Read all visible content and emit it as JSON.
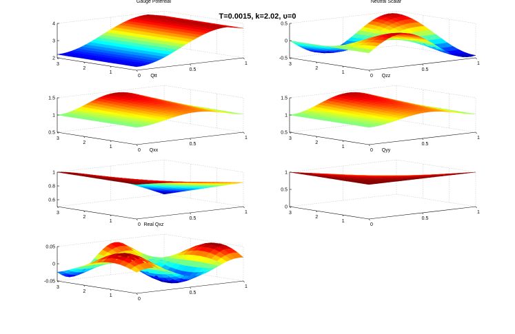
{
  "title": "T=0.0015, k=2.02, υ=0",
  "chart_data": [
    {
      "type": "surface",
      "title": "Gauge Potential",
      "xlim": [
        0,
        1
      ],
      "ylim": [
        0,
        3
      ],
      "zlim": [
        2,
        4
      ],
      "xticks": [
        "0",
        "0.5",
        "1"
      ],
      "yticks": [
        "1",
        "2",
        "3"
      ],
      "zticks": [
        "2",
        "3",
        "4"
      ],
      "surface": {
        "kind": "ramp",
        "z_at_x0": 2.2,
        "z_at_x1": 3.9,
        "peak_x": 0.85
      }
    },
    {
      "type": "surface",
      "title": "Neutral Scalar",
      "xlim": [
        0,
        1
      ],
      "ylim": [
        0,
        3
      ],
      "zlim": [
        -0.5,
        0.5
      ],
      "xticks": [
        "0",
        "0.5",
        "1"
      ],
      "yticks": [
        "1",
        "2",
        "3"
      ],
      "zticks": [
        "-0.5",
        "0",
        "0.5"
      ],
      "surface": {
        "kind": "wave",
        "amplitude": 0.45
      }
    },
    {
      "type": "surface",
      "title": "Qtt",
      "xlim": [
        0,
        1
      ],
      "ylim": [
        0,
        3
      ],
      "zlim": [
        0.5,
        1.5
      ],
      "xticks": [
        "0",
        "0.5",
        "1"
      ],
      "yticks": [
        "1",
        "2",
        "3"
      ],
      "zticks": [
        "0.5",
        "1",
        "1.5"
      ],
      "surface": {
        "kind": "bump",
        "base": 1.0,
        "peak": 1.45
      }
    },
    {
      "type": "surface",
      "title": "Qzz",
      "xlim": [
        0,
        1
      ],
      "ylim": [
        0,
        3
      ],
      "zlim": [
        0.5,
        1.5
      ],
      "xticks": [
        "0",
        "0.5",
        "1"
      ],
      "yticks": [
        "1",
        "2",
        "3"
      ],
      "zticks": [
        "0.5",
        "1",
        "1.5"
      ],
      "surface": {
        "kind": "bump",
        "base": 1.0,
        "peak": 1.45
      }
    },
    {
      "type": "surface",
      "title": "Qxx",
      "xlim": [
        0,
        1
      ],
      "ylim": [
        0,
        3
      ],
      "zlim": [
        0.5,
        1
      ],
      "xticks": [
        "0",
        "0.5",
        "1"
      ],
      "yticks": [
        "1",
        "2",
        "3"
      ],
      "zticks": [
        "0.6",
        "0.8",
        "1"
      ],
      "surface": {
        "kind": "dip",
        "base": 1.0,
        "min": 0.5
      }
    },
    {
      "type": "surface",
      "title": "Qyy",
      "xlim": [
        0,
        1
      ],
      "ylim": [
        0,
        3
      ],
      "zlim": [
        0,
        1
      ],
      "xticks": [
        "0",
        "0.5",
        "1"
      ],
      "yticks": [
        "1",
        "2",
        "3"
      ],
      "zticks": [
        "0",
        "0.5",
        "1"
      ],
      "surface": {
        "kind": "slope",
        "z_at_x0": 1.0,
        "z_at_x1": 0.5
      }
    },
    {
      "type": "surface",
      "title": "Real Qxz",
      "xlim": [
        0,
        1
      ],
      "ylim": [
        0,
        3
      ],
      "zlim": [
        -0.05,
        0.05
      ],
      "xticks": [
        "0",
        "0.5",
        "1"
      ],
      "yticks": [
        "1",
        "2",
        "3"
      ],
      "zticks": [
        "-0.05",
        "0",
        "0.05"
      ],
      "surface": {
        "kind": "ripple",
        "amplitude": 0.05
      }
    }
  ]
}
